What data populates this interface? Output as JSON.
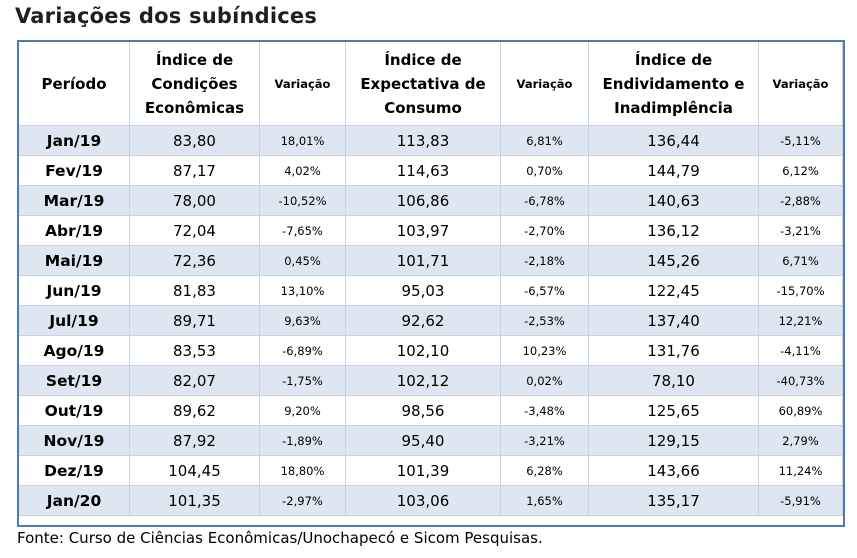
{
  "title": "Variações dos subíndices",
  "headers": {
    "period": "Período",
    "icec": "Índice de Condições Econômicas",
    "icec_var": "Variação",
    "iec": "Índice de Expectativa de Consumo",
    "iec_var": "Variação",
    "iei": "Índice de Endividamento e Inadimplência",
    "iei_var": "Variação"
  },
  "rows": [
    {
      "period": "Jan/19",
      "icec": "83,80",
      "icec_var": "18,01%",
      "iec": "113,83",
      "iec_var": "6,81%",
      "iei": "136,44",
      "iei_var": "-5,11%"
    },
    {
      "period": "Fev/19",
      "icec": "87,17",
      "icec_var": "4,02%",
      "iec": "114,63",
      "iec_var": "0,70%",
      "iei": "144,79",
      "iei_var": "6,12%"
    },
    {
      "period": "Mar/19",
      "icec": "78,00",
      "icec_var": "-10,52%",
      "iec": "106,86",
      "iec_var": "-6,78%",
      "iei": "140,63",
      "iei_var": "-2,88%"
    },
    {
      "period": "Abr/19",
      "icec": "72,04",
      "icec_var": "-7,65%",
      "iec": "103,97",
      "iec_var": "-2,70%",
      "iei": "136,12",
      "iei_var": "-3,21%"
    },
    {
      "period": "Mai/19",
      "icec": "72,36",
      "icec_var": "0,45%",
      "iec": "101,71",
      "iec_var": "-2,18%",
      "iei": "145,26",
      "iei_var": "6,71%"
    },
    {
      "period": "Jun/19",
      "icec": "81,83",
      "icec_var": "13,10%",
      "iec": "95,03",
      "iec_var": "-6,57%",
      "iei": "122,45",
      "iei_var": "-15,70%"
    },
    {
      "period": "Jul/19",
      "icec": "89,71",
      "icec_var": "9,63%",
      "iec": "92,62",
      "iec_var": "-2,53%",
      "iei": "137,40",
      "iei_var": "12,21%"
    },
    {
      "period": "Ago/19",
      "icec": "83,53",
      "icec_var": "-6,89%",
      "iec": "102,10",
      "iec_var": "10,23%",
      "iei": "131,76",
      "iei_var": "-4,11%"
    },
    {
      "period": "Set/19",
      "icec": "82,07",
      "icec_var": "-1,75%",
      "iec": "102,12",
      "iec_var": "0,02%",
      "iei": "78,10",
      "iei_var": "-40,73%"
    },
    {
      "period": "Out/19",
      "icec": "89,62",
      "icec_var": "9,20%",
      "iec": "98,56",
      "iec_var": "-3,48%",
      "iei": "125,65",
      "iei_var": "60,89%"
    },
    {
      "period": "Nov/19",
      "icec": "87,92",
      "icec_var": "-1,89%",
      "iec": "95,40",
      "iec_var": "-3,21%",
      "iei": "129,15",
      "iei_var": "2,79%"
    },
    {
      "period": "Dez/19",
      "icec": "104,45",
      "icec_var": "18,80%",
      "iec": "101,39",
      "iec_var": "6,28%",
      "iei": "143,66",
      "iei_var": "11,24%"
    },
    {
      "period": "Jan/20",
      "icec": "101,35",
      "icec_var": "-2,97%",
      "iec": "103,06",
      "iec_var": "1,65%",
      "iei": "135,17",
      "iei_var": "-5,91%"
    }
  ],
  "source": "Fonte: Curso de Ciências Econômicas/Unochapecó e Sicom Pesquisas.",
  "colors": {
    "border": "#4f7bb3",
    "stripe": "#dde6f1",
    "background": "#ffffff"
  }
}
